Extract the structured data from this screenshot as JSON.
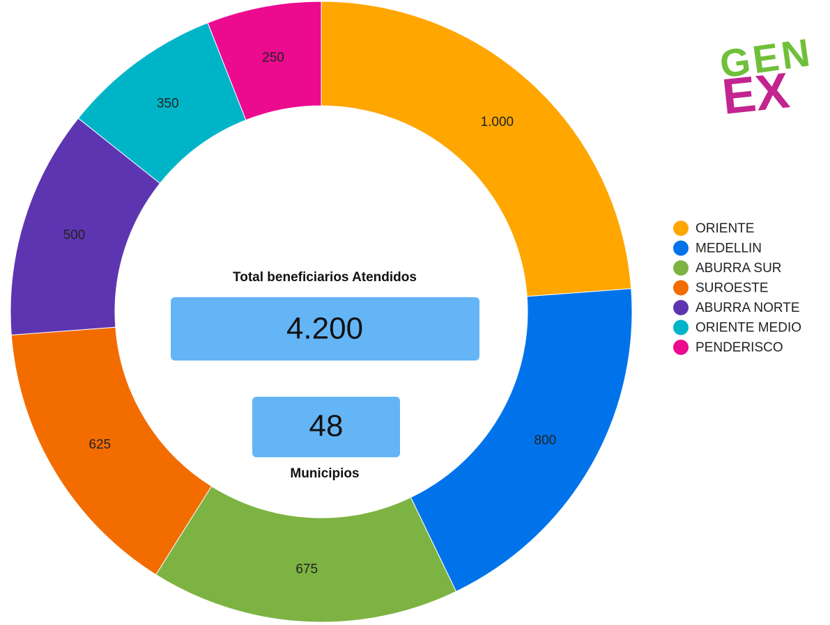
{
  "chart_data": {
    "type": "donut",
    "categories": [
      "ORIENTE",
      "MEDELLIN",
      "ABURRA SUR",
      "SUROESTE",
      "ABURRA NORTE",
      "ORIENTE MEDIO",
      "PENDERISCO"
    ],
    "values": [
      1000,
      800,
      675,
      625,
      500,
      350,
      250
    ],
    "value_labels": [
      "1.000",
      "800",
      "675",
      "625",
      "500",
      "350",
      "250"
    ],
    "colors": [
      "#ffa600",
      "#0073ea",
      "#7cb342",
      "#f36c00",
      "#5e35b1",
      "#00b4c8",
      "#ec0a8f"
    ],
    "legend": "right",
    "kpis": [
      {
        "label": "Total beneficiarios Atendidos",
        "value": "4.200"
      },
      {
        "label": "Municipios",
        "value": "48"
      }
    ]
  },
  "logo": {
    "top": "GEN",
    "bottom": "EX"
  }
}
